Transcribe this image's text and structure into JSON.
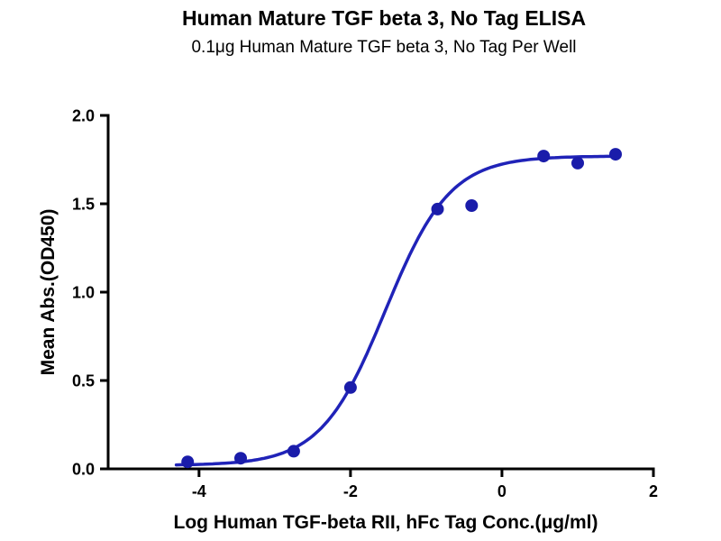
{
  "chart_data": {
    "type": "scatter",
    "title": "Human Mature TGF beta 3, No Tag ELISA",
    "subtitle": "0.1μg Human Mature TGF beta 3, No Tag Per Well",
    "xlabel": "Log Human TGF-beta RII, hFc Tag Conc.(μg/ml)",
    "ylabel": "Mean Abs.(OD450)",
    "xlim": [
      -5.2,
      2
    ],
    "ylim": [
      0,
      2
    ],
    "x_ticks": [
      -4,
      -2,
      0,
      2
    ],
    "y_ticks": [
      0.0,
      0.5,
      1.0,
      1.5,
      2.0
    ],
    "grid": false,
    "legend": "none",
    "points": [
      {
        "x": -4.15,
        "y": 0.04
      },
      {
        "x": -3.45,
        "y": 0.06
      },
      {
        "x": -2.75,
        "y": 0.1
      },
      {
        "x": -2.0,
        "y": 0.46
      },
      {
        "x": -0.85,
        "y": 1.47
      },
      {
        "x": -0.4,
        "y": 1.49
      },
      {
        "x": 0.55,
        "y": 1.77
      },
      {
        "x": 1.0,
        "y": 1.73
      },
      {
        "x": 1.5,
        "y": 1.78
      }
    ],
    "fit": {
      "model": "4PL-sigmoid",
      "bottom": 0.02,
      "top": 1.77,
      "logEC50": -1.54,
      "hill": 1.02,
      "x_range": [
        -4.3,
        1.55
      ]
    },
    "colors": {
      "axis": "#000000",
      "line": "#2023b8",
      "marker": "#1a1caa",
      "background": "#ffffff"
    }
  }
}
